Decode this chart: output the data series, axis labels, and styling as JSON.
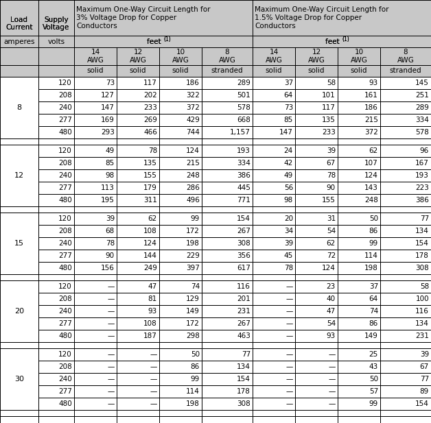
{
  "load_currents": [
    8,
    12,
    15,
    20,
    30
  ],
  "voltages": [
    "120",
    "208",
    "240",
    "277",
    "480"
  ],
  "data": {
    "8": {
      "3pct": {
        "120": [
          "73",
          "117",
          "186",
          "289"
        ],
        "208": [
          "127",
          "202",
          "322",
          "501"
        ],
        "240": [
          "147",
          "233",
          "372",
          "578"
        ],
        "277": [
          "169",
          "269",
          "429",
          "668"
        ],
        "480": [
          "293",
          "466",
          "744",
          "1,157"
        ]
      },
      "15pct": {
        "120": [
          "37",
          "58",
          "93",
          "145"
        ],
        "208": [
          "64",
          "101",
          "161",
          "251"
        ],
        "240": [
          "73",
          "117",
          "186",
          "289"
        ],
        "277": [
          "85",
          "135",
          "215",
          "334"
        ],
        "480": [
          "147",
          "233",
          "372",
          "578"
        ]
      }
    },
    "12": {
      "3pct": {
        "120": [
          "49",
          "78",
          "124",
          "193"
        ],
        "208": [
          "85",
          "135",
          "215",
          "334"
        ],
        "240": [
          "98",
          "155",
          "248",
          "386"
        ],
        "277": [
          "113",
          "179",
          "286",
          "445"
        ],
        "480": [
          "195",
          "311",
          "496",
          "771"
        ]
      },
      "15pct": {
        "120": [
          "24",
          "39",
          "62",
          "96"
        ],
        "208": [
          "42",
          "67",
          "107",
          "167"
        ],
        "240": [
          "49",
          "78",
          "124",
          "193"
        ],
        "277": [
          "56",
          "90",
          "143",
          "223"
        ],
        "480": [
          "98",
          "155",
          "248",
          "386"
        ]
      }
    },
    "15": {
      "3pct": {
        "120": [
          "39",
          "62",
          "99",
          "154"
        ],
        "208": [
          "68",
          "108",
          "172",
          "267"
        ],
        "240": [
          "78",
          "124",
          "198",
          "308"
        ],
        "277": [
          "90",
          "144",
          "229",
          "356"
        ],
        "480": [
          "156",
          "249",
          "397",
          "617"
        ]
      },
      "15pct": {
        "120": [
          "20",
          "31",
          "50",
          "77"
        ],
        "208": [
          "34",
          "54",
          "86",
          "134"
        ],
        "240": [
          "39",
          "62",
          "99",
          "154"
        ],
        "277": [
          "45",
          "72",
          "114",
          "178"
        ],
        "480": [
          "78",
          "124",
          "198",
          "308"
        ]
      }
    },
    "20": {
      "3pct": {
        "120": [
          "—",
          "47",
          "74",
          "116"
        ],
        "208": [
          "—",
          "81",
          "129",
          "201"
        ],
        "240": [
          "—",
          "93",
          "149",
          "231"
        ],
        "277": [
          "—",
          "108",
          "172",
          "267"
        ],
        "480": [
          "—",
          "187",
          "298",
          "463"
        ]
      },
      "15pct": {
        "120": [
          "—",
          "23",
          "37",
          "58"
        ],
        "208": [
          "—",
          "40",
          "64",
          "100"
        ],
        "240": [
          "—",
          "47",
          "74",
          "116"
        ],
        "277": [
          "—",
          "54",
          "86",
          "134"
        ],
        "480": [
          "—",
          "93",
          "149",
          "231"
        ]
      }
    },
    "30": {
      "3pct": {
        "120": [
          "—",
          "—",
          "50",
          "77"
        ],
        "208": [
          "—",
          "—",
          "86",
          "134"
        ],
        "240": [
          "—",
          "—",
          "99",
          "154"
        ],
        "277": [
          "—",
          "—",
          "114",
          "178"
        ],
        "480": [
          "—",
          "—",
          "198",
          "308"
        ]
      },
      "15pct": {
        "120": [
          "—",
          "—",
          "25",
          "39"
        ],
        "208": [
          "—",
          "—",
          "43",
          "67"
        ],
        "240": [
          "—",
          "—",
          "50",
          "77"
        ],
        "277": [
          "—",
          "—",
          "57",
          "89"
        ],
        "480": [
          "—",
          "—",
          "99",
          "154"
        ]
      }
    }
  },
  "bg_header": "#c8c8c8",
  "bg_white": "#ffffff",
  "border_color": "#000000",
  "text_color": "#000000"
}
